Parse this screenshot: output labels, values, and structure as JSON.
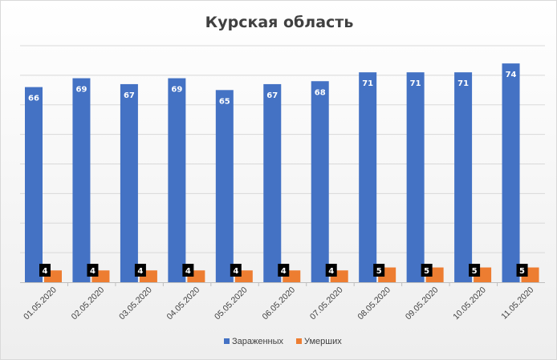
{
  "chart_data": {
    "type": "bar",
    "title": "Курская область",
    "xlabel": "",
    "ylabel": "",
    "categories": [
      "01.05.2020",
      "02.05.2020",
      "03.05.2020",
      "04.05.2020",
      "05.05.2020",
      "06.05.2020",
      "07.05.2020",
      "08.05.2020",
      "09.05.2020",
      "10.05.2020",
      "11.05.2020"
    ],
    "series": [
      {
        "name": "Зараженных",
        "color": "#4472c4",
        "values": [
          66,
          69,
          67,
          69,
          65,
          67,
          68,
          71,
          71,
          71,
          74
        ]
      },
      {
        "name": "Умерших",
        "color": "#ed7d31",
        "values": [
          4,
          4,
          4,
          4,
          4,
          4,
          4,
          5,
          5,
          5,
          5
        ]
      }
    ],
    "ylim": [
      0,
      80
    ],
    "grid": true,
    "legend": "bottom",
    "data_labels": true,
    "label_box_color": "#000000",
    "gridline_color": "#d9d9d9"
  }
}
